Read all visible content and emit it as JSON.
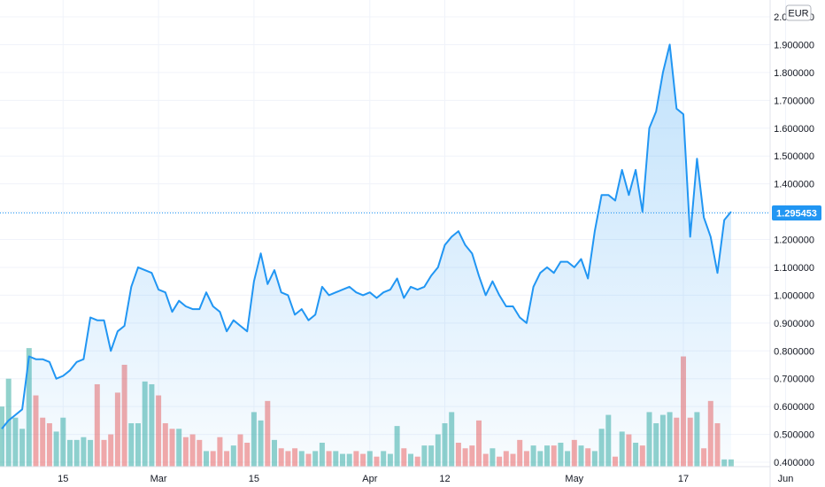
{
  "currency_label": "EUR",
  "last_price_label": "1.295453",
  "chart_data": {
    "type": "area",
    "title": "",
    "xlabel": "",
    "ylabel": "",
    "x_tick_labels": [
      "15",
      "Mar",
      "15",
      "Apr",
      "12",
      "May",
      "17",
      "Jun"
    ],
    "y_tick_labels": [
      "0.400000",
      "0.500000",
      "0.600000",
      "0.700000",
      "0.800000",
      "0.900000",
      "1.000000",
      "1.100000",
      "1.200000",
      "1.300000",
      "1.400000",
      "1.500000",
      "1.600000",
      "1.700000",
      "1.800000",
      "1.900000",
      "2.000000"
    ],
    "ylim": [
      0.4,
      2.0
    ],
    "grid": true,
    "last_value": 1.295453,
    "x_start": "2021-02-06",
    "x_end": "2021-06-03",
    "price": {
      "name": "",
      "color": "#2196f3",
      "dates": [
        "2021-02-06",
        "2021-02-07",
        "2021-02-08",
        "2021-02-09",
        "2021-02-10",
        "2021-02-11",
        "2021-02-12",
        "2021-02-13",
        "2021-02-14",
        "2021-02-15",
        "2021-02-16",
        "2021-02-17",
        "2021-02-18",
        "2021-02-19",
        "2021-02-20",
        "2021-02-21",
        "2021-02-22",
        "2021-02-23",
        "2021-02-24",
        "2021-02-25",
        "2021-02-26",
        "2021-02-27",
        "2021-02-28",
        "2021-03-01",
        "2021-03-02",
        "2021-03-03",
        "2021-03-04",
        "2021-03-05",
        "2021-03-06",
        "2021-03-07",
        "2021-03-08",
        "2021-03-09",
        "2021-03-10",
        "2021-03-11",
        "2021-03-12",
        "2021-03-13",
        "2021-03-14",
        "2021-03-15",
        "2021-03-16",
        "2021-03-17",
        "2021-03-18",
        "2021-03-19",
        "2021-03-20",
        "2021-03-21",
        "2021-03-22",
        "2021-03-23",
        "2021-03-24",
        "2021-03-25",
        "2021-03-26",
        "2021-03-27",
        "2021-03-28",
        "2021-03-29",
        "2021-03-30",
        "2021-03-31",
        "2021-04-01",
        "2021-04-02",
        "2021-04-03",
        "2021-04-04",
        "2021-04-05",
        "2021-04-06",
        "2021-04-07",
        "2021-04-08",
        "2021-04-09",
        "2021-04-10",
        "2021-04-11",
        "2021-04-12",
        "2021-04-13",
        "2021-04-14",
        "2021-04-15",
        "2021-04-16",
        "2021-04-17",
        "2021-04-18",
        "2021-04-19",
        "2021-04-20",
        "2021-04-21",
        "2021-04-22",
        "2021-04-23",
        "2021-04-24",
        "2021-04-25",
        "2021-04-26",
        "2021-04-27",
        "2021-04-28",
        "2021-04-29",
        "2021-04-30",
        "2021-05-01",
        "2021-05-02",
        "2021-05-03",
        "2021-05-04",
        "2021-05-05",
        "2021-05-06",
        "2021-05-07",
        "2021-05-08",
        "2021-05-09",
        "2021-05-10",
        "2021-05-11",
        "2021-05-12",
        "2021-05-13",
        "2021-05-14",
        "2021-05-15",
        "2021-05-16",
        "2021-05-17",
        "2021-05-18",
        "2021-05-19",
        "2021-05-20",
        "2021-05-21",
        "2021-05-22",
        "2021-05-23",
        "2021-05-24"
      ],
      "values": [
        0.52,
        0.55,
        0.57,
        0.59,
        0.78,
        0.77,
        0.77,
        0.76,
        0.7,
        0.71,
        0.73,
        0.76,
        0.77,
        0.92,
        0.91,
        0.91,
        0.8,
        0.87,
        0.89,
        1.03,
        1.1,
        1.09,
        1.08,
        1.02,
        1.01,
        0.94,
        0.98,
        0.96,
        0.95,
        0.95,
        1.01,
        0.96,
        0.94,
        0.87,
        0.91,
        0.89,
        0.87,
        1.05,
        1.15,
        1.04,
        1.09,
        1.01,
        1.0,
        0.93,
        0.95,
        0.91,
        0.93,
        1.03,
        1.0,
        1.01,
        1.02,
        1.03,
        1.01,
        1.0,
        1.01,
        0.99,
        1.01,
        1.02,
        1.06,
        0.99,
        1.03,
        1.02,
        1.03,
        1.07,
        1.1,
        1.18,
        1.21,
        1.23,
        1.18,
        1.15,
        1.07,
        1.0,
        1.05,
        1.0,
        0.96,
        0.96,
        0.92,
        0.9,
        1.03,
        1.08,
        1.1,
        1.08,
        1.12,
        1.12,
        1.1,
        1.13,
        1.06,
        1.23,
        1.36,
        1.36,
        1.34,
        1.45,
        1.36,
        1.45,
        1.3,
        1.6,
        1.66,
        1.8,
        1.9,
        1.67,
        1.65,
        1.21,
        1.49,
        1.28,
        1.21,
        1.08,
        1.27,
        1.3
      ]
    },
    "volume": {
      "up_color": "#26a69a",
      "down_color": "#ef5350",
      "dates": [
        "2021-02-06",
        "2021-02-07",
        "2021-02-08",
        "2021-02-09",
        "2021-02-10",
        "2021-02-11",
        "2021-02-12",
        "2021-02-13",
        "2021-02-14",
        "2021-02-15",
        "2021-02-16",
        "2021-02-17",
        "2021-02-18",
        "2021-02-19",
        "2021-02-20",
        "2021-02-21",
        "2021-02-22",
        "2021-02-23",
        "2021-02-24",
        "2021-02-25",
        "2021-02-26",
        "2021-02-27",
        "2021-02-28",
        "2021-03-01",
        "2021-03-02",
        "2021-03-03",
        "2021-03-04",
        "2021-03-05",
        "2021-03-06",
        "2021-03-07",
        "2021-03-08",
        "2021-03-09",
        "2021-03-10",
        "2021-03-11",
        "2021-03-12",
        "2021-03-13",
        "2021-03-14",
        "2021-03-15",
        "2021-03-16",
        "2021-03-17",
        "2021-03-18",
        "2021-03-19",
        "2021-03-20",
        "2021-03-21",
        "2021-03-22",
        "2021-03-23",
        "2021-03-24",
        "2021-03-25",
        "2021-03-26",
        "2021-03-27",
        "2021-03-28",
        "2021-03-29",
        "2021-03-30",
        "2021-03-31",
        "2021-04-01",
        "2021-04-02",
        "2021-04-03",
        "2021-04-04",
        "2021-04-05",
        "2021-04-06",
        "2021-04-07",
        "2021-04-08",
        "2021-04-09",
        "2021-04-10",
        "2021-04-11",
        "2021-04-12",
        "2021-04-13",
        "2021-04-14",
        "2021-04-15",
        "2021-04-16",
        "2021-04-17",
        "2021-04-18",
        "2021-04-19",
        "2021-04-20",
        "2021-04-21",
        "2021-04-22",
        "2021-04-23",
        "2021-04-24",
        "2021-04-25",
        "2021-04-26",
        "2021-04-27",
        "2021-04-28",
        "2021-04-29",
        "2021-04-30",
        "2021-05-01",
        "2021-05-02",
        "2021-05-03",
        "2021-05-04",
        "2021-05-05",
        "2021-05-06",
        "2021-05-07",
        "2021-05-08",
        "2021-05-09",
        "2021-05-10",
        "2021-05-11",
        "2021-05-12",
        "2021-05-13",
        "2021-05-14",
        "2021-05-15",
        "2021-05-16",
        "2021-05-17",
        "2021-05-18",
        "2021-05-19",
        "2021-05-20",
        "2021-05-21",
        "2021-05-22",
        "2021-05-23",
        "2021-05-24"
      ],
      "values": [
        600,
        700,
        560,
        520,
        810,
        640,
        560,
        540,
        510,
        560,
        480,
        480,
        490,
        480,
        680,
        480,
        500,
        650,
        750,
        540,
        540,
        690,
        680,
        640,
        540,
        520,
        520,
        490,
        500,
        480,
        440,
        440,
        490,
        440,
        460,
        500,
        470,
        580,
        550,
        620,
        480,
        450,
        440,
        450,
        440,
        430,
        440,
        470,
        440,
        440,
        430,
        430,
        440,
        430,
        440,
        420,
        440,
        430,
        530,
        450,
        430,
        420,
        460,
        460,
        500,
        540,
        580,
        470,
        450,
        460,
        550,
        430,
        450,
        420,
        440,
        430,
        480,
        440,
        460,
        440,
        460,
        460,
        470,
        440,
        480,
        460,
        450,
        440,
        520,
        570,
        420,
        510,
        500,
        470,
        460,
        580,
        540,
        570,
        580,
        560,
        780,
        560,
        580,
        450,
        620,
        540,
        410,
        410
      ],
      "direction": [
        "up",
        "up",
        "up",
        "up",
        "up",
        "down",
        "down",
        "down",
        "up",
        "up",
        "up",
        "up",
        "up",
        "up",
        "down",
        "down",
        "down",
        "down",
        "down",
        "up",
        "up",
        "up",
        "up",
        "down",
        "down",
        "down",
        "up",
        "down",
        "down",
        "down",
        "up",
        "down",
        "down",
        "down",
        "up",
        "down",
        "down",
        "up",
        "up",
        "down",
        "up",
        "down",
        "down",
        "down",
        "up",
        "down",
        "up",
        "up",
        "down",
        "up",
        "up",
        "up",
        "down",
        "down",
        "up",
        "down",
        "up",
        "up",
        "up",
        "down",
        "up",
        "down",
        "up",
        "up",
        "up",
        "up",
        "up",
        "down",
        "down",
        "down",
        "down",
        "down",
        "up",
        "down",
        "down",
        "down",
        "down",
        "down",
        "up",
        "up",
        "up",
        "down",
        "up",
        "up",
        "down",
        "up",
        "down",
        "up",
        "up",
        "up",
        "down",
        "up",
        "down",
        "up",
        "down",
        "up",
        "up",
        "up",
        "up",
        "down",
        "down",
        "down",
        "up",
        "down",
        "down",
        "down",
        "up",
        "up"
      ]
    }
  }
}
